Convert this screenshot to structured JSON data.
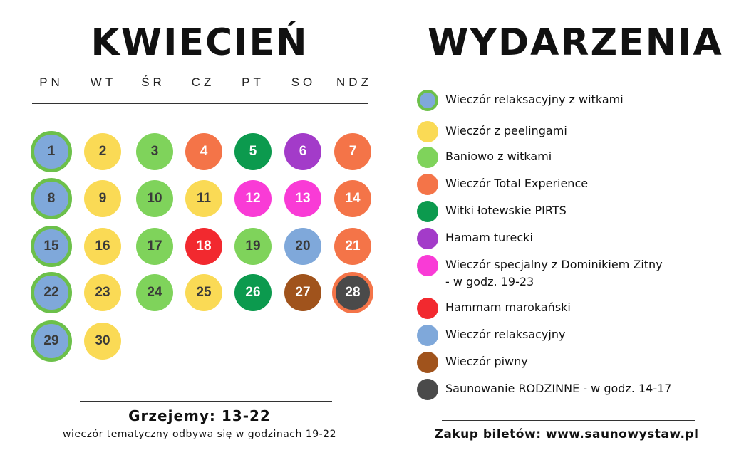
{
  "month": {
    "title": "KWIECIEŃ"
  },
  "events_title": "WYDARZENIA",
  "weekdays": [
    "PN",
    "WT",
    "ŚR",
    "CZ",
    "PT",
    "SO",
    "NDZ"
  ],
  "colors": {
    "blue": "#7FA8DA",
    "green_ring": "#6CC04A",
    "yellow": "#FADA55",
    "light_green": "#7FD35B",
    "orange": "#F47448",
    "dark_green": "#0C9A4E",
    "purple": "#A33BC9",
    "magenta": "#F93BD6",
    "red": "#F2292F",
    "brown": "#A0531C",
    "dark_gray": "#4A4A4A",
    "text_dark": "#3A3A3A",
    "text_light": "#FFFFFF"
  },
  "days": [
    {
      "day": "1",
      "event": "Wieczór relaksacyjny z witkami"
    },
    {
      "day": "2",
      "event": "Wieczór z peelingami"
    },
    {
      "day": "3",
      "event": "Baniowo z witkami"
    },
    {
      "day": "4",
      "event": "Wieczór Total Experience"
    },
    {
      "day": "5",
      "event": "Witki łotewskie PIRTS"
    },
    {
      "day": "6",
      "event": "Hamam turecki"
    },
    {
      "day": "7",
      "event": "Wieczór Total Experience"
    },
    {
      "day": "8",
      "event": "Wieczór relaksacyjny z witkami"
    },
    {
      "day": "9",
      "event": "Wieczór z peelingami"
    },
    {
      "day": "10",
      "event": "Baniowo z witkami"
    },
    {
      "day": "11",
      "event": "Wieczór z peelingami"
    },
    {
      "day": "12",
      "event": "Wieczór specjalny z Dominikiem Zitny"
    },
    {
      "day": "13",
      "event": "Wieczór specjalny z Dominikiem Zitny"
    },
    {
      "day": "14",
      "event": "Wieczór Total Experience"
    },
    {
      "day": "15",
      "event": "Wieczór relaksacyjny z witkami"
    },
    {
      "day": "16",
      "event": "Wieczór z peelingami"
    },
    {
      "day": "17",
      "event": "Baniowo z witkami"
    },
    {
      "day": "18",
      "event": "Hammam marokański"
    },
    {
      "day": "19",
      "event": "Baniowo z witkami"
    },
    {
      "day": "20",
      "event": "Wieczór relaksacyjny"
    },
    {
      "day": "21",
      "event": "Wieczór Total Experience"
    },
    {
      "day": "22",
      "event": "Wieczór relaksacyjny z witkami"
    },
    {
      "day": "23",
      "event": "Wieczór z peelingami"
    },
    {
      "day": "24",
      "event": "Baniowo z witkami"
    },
    {
      "day": "25",
      "event": "Wieczór z peelingami"
    },
    {
      "day": "26",
      "event": "Witki łotewskie PIRTS"
    },
    {
      "day": "27",
      "event": "Wieczór piwny"
    },
    {
      "day": "28",
      "event": "Saunowanie RODZINNE"
    },
    {
      "day": "29",
      "event": "Wieczór relaksacyjny z witkami"
    },
    {
      "day": "30",
      "event": "Wieczór z peelingami"
    }
  ],
  "legend": [
    {
      "label": "Wieczór relaksacyjny z witkami",
      "color": "#7FA8DA",
      "ring": "#6CC04A"
    },
    {
      "label": "Wieczór z peelingami",
      "color": "#FADA55"
    },
    {
      "label": "Baniowo z witkami",
      "color": "#7FD35B"
    },
    {
      "label": "Wieczór Total Experience",
      "color": "#F47448"
    },
    {
      "label": "Witki łotewskie PIRTS",
      "color": "#0C9A4E"
    },
    {
      "label": "Hamam turecki",
      "color": "#A33BC9"
    },
    {
      "label": "Wieczór specjalny z Dominikiem Zitny",
      "label2": "- w godz. 19-23",
      "color": "#F93BD6"
    },
    {
      "label": "Hammam marokański",
      "color": "#F2292F"
    },
    {
      "label": "Wieczór relaksacyjny",
      "color": "#7FA8DA"
    },
    {
      "label": "Wieczór piwny",
      "color": "#A0531C"
    },
    {
      "label": "Saunowanie RODZINNE - w godz. 14-17",
      "color": "#4A4A4A"
    }
  ],
  "footer": {
    "heating": "Grzejemy: 13-22",
    "note": "wieczór tematyczny odbywa się w godzinach 19-22",
    "tickets": "Zakup biletów: www.saunowystaw.pl"
  }
}
